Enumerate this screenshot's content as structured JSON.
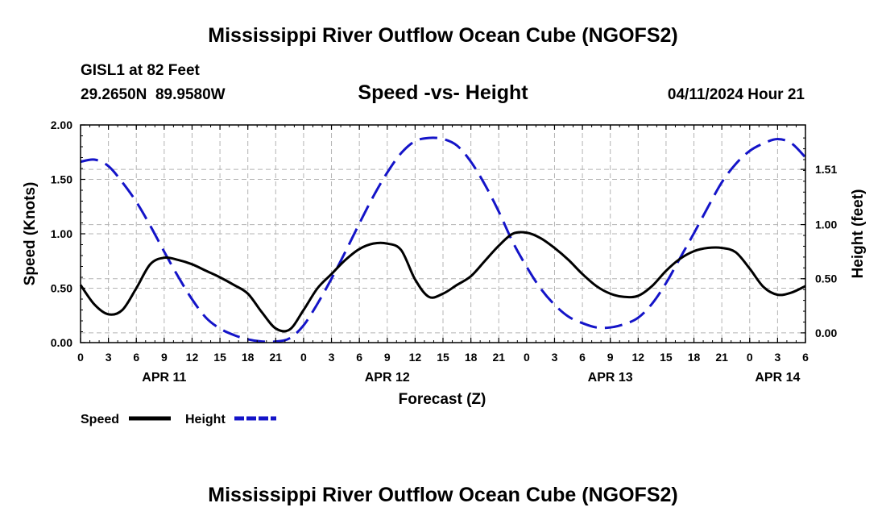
{
  "page": {
    "title": "Mississippi River Outflow Ocean Cube (NGOFS2)",
    "footer_title": "Mississippi River Outflow Ocean Cube (NGOFS2)",
    "station": "GISL1 at 82 Feet",
    "coordinates": "29.2650N  89.9580W",
    "subtitle": "Speed -vs- Height",
    "timestamp": "04/11/2024 Hour 21"
  },
  "chart_data": {
    "type": "line",
    "title": "Speed -vs- Height",
    "xlabel": "Forecast (Z)",
    "ylabel": "Speed (Knots)",
    "y2label": "Height (feet)",
    "xlim": [
      0,
      78
    ],
    "ylim": [
      0,
      2.0
    ],
    "y2lim": [
      -0.09,
      1.92
    ],
    "grid": true,
    "x_ticks": [
      0,
      3,
      6,
      9,
      12,
      15,
      18,
      21,
      24,
      27,
      30,
      33,
      36,
      39,
      42,
      45,
      48,
      51,
      54,
      57,
      60,
      63,
      66,
      69,
      72,
      75,
      78
    ],
    "x_tick_labels": [
      "0",
      "3",
      "6",
      "9",
      "12",
      "15",
      "18",
      "21",
      "0",
      "3",
      "6",
      "9",
      "12",
      "15",
      "18",
      "21",
      "0",
      "3",
      "6",
      "9",
      "12",
      "15",
      "18",
      "21",
      "0",
      "3",
      "6"
    ],
    "date_labels": [
      {
        "x": 9,
        "label": "APR 11"
      },
      {
        "x": 33,
        "label": "APR 12"
      },
      {
        "x": 57,
        "label": "APR 13"
      },
      {
        "x": 75,
        "label": "APR 14"
      }
    ],
    "y_ticks": [
      0.0,
      0.5,
      1.0,
      1.5,
      2.0
    ],
    "y_tick_labels": [
      "0.00",
      "0.50",
      "1.00",
      "1.50",
      "2.00"
    ],
    "y2_ticks": [
      0.0,
      0.5,
      1.0,
      1.51
    ],
    "y2_tick_labels": [
      "0.00",
      "0.50",
      "1.00",
      "1.51"
    ],
    "legend": "bottom-left",
    "series": [
      {
        "name": "Speed",
        "axis": "left",
        "color": "#000000",
        "dash": "solid",
        "x": [
          0,
          1.5,
          3,
          4.5,
          6,
          7.5,
          9,
          10.5,
          12,
          13.5,
          15,
          16.5,
          18,
          19.5,
          21,
          22.5,
          24,
          25.5,
          27,
          28.5,
          30,
          31.5,
          33,
          34.5,
          36,
          37.5,
          39,
          40.5,
          42,
          43.5,
          45,
          46.5,
          48,
          49.5,
          51,
          52.5,
          54,
          55.5,
          57,
          58.5,
          60,
          61.5,
          63,
          64.5,
          66,
          67.5,
          69,
          70.5,
          72,
          73.5,
          75,
          76.5,
          78
        ],
        "values": [
          0.53,
          0.35,
          0.26,
          0.3,
          0.5,
          0.72,
          0.78,
          0.76,
          0.72,
          0.66,
          0.6,
          0.53,
          0.45,
          0.28,
          0.13,
          0.12,
          0.3,
          0.5,
          0.63,
          0.76,
          0.86,
          0.91,
          0.91,
          0.85,
          0.58,
          0.42,
          0.45,
          0.53,
          0.61,
          0.75,
          0.89,
          1.0,
          1.01,
          0.96,
          0.87,
          0.76,
          0.63,
          0.52,
          0.45,
          0.42,
          0.43,
          0.52,
          0.66,
          0.77,
          0.84,
          0.87,
          0.87,
          0.83,
          0.68,
          0.51,
          0.44,
          0.46,
          0.52
        ]
      },
      {
        "name": "Height",
        "axis": "right",
        "color": "#1414c8",
        "dash": "dashed",
        "x": [
          0,
          1.5,
          3,
          4.5,
          6,
          7.5,
          9,
          10.5,
          12,
          13.5,
          15,
          16.5,
          18,
          19.5,
          21,
          22.5,
          24,
          25.5,
          27,
          28.5,
          30,
          31.5,
          33,
          34.5,
          36,
          37.5,
          39,
          40.5,
          42,
          43.5,
          45,
          46.5,
          48,
          49.5,
          51,
          52.5,
          54,
          55.5,
          57,
          58.5,
          60,
          61.5,
          63,
          64.5,
          66,
          67.5,
          69,
          70.5,
          72,
          73.5,
          75,
          76.5,
          78
        ],
        "values": [
          1.58,
          1.6,
          1.54,
          1.39,
          1.21,
          0.99,
          0.75,
          0.52,
          0.31,
          0.14,
          0.04,
          -0.02,
          -0.06,
          -0.08,
          -0.08,
          -0.05,
          0.07,
          0.27,
          0.5,
          0.75,
          1.01,
          1.26,
          1.48,
          1.66,
          1.77,
          1.8,
          1.79,
          1.73,
          1.58,
          1.37,
          1.12,
          0.84,
          0.61,
          0.41,
          0.26,
          0.15,
          0.09,
          0.05,
          0.05,
          0.08,
          0.14,
          0.27,
          0.46,
          0.69,
          0.92,
          1.16,
          1.39,
          1.56,
          1.68,
          1.75,
          1.79,
          1.75,
          1.62
        ]
      }
    ]
  },
  "legend_items": [
    {
      "label": "Speed",
      "color": "#000000",
      "dash": "solid"
    },
    {
      "label": "Height",
      "color": "#1414c8",
      "dash": "dashed"
    }
  ]
}
